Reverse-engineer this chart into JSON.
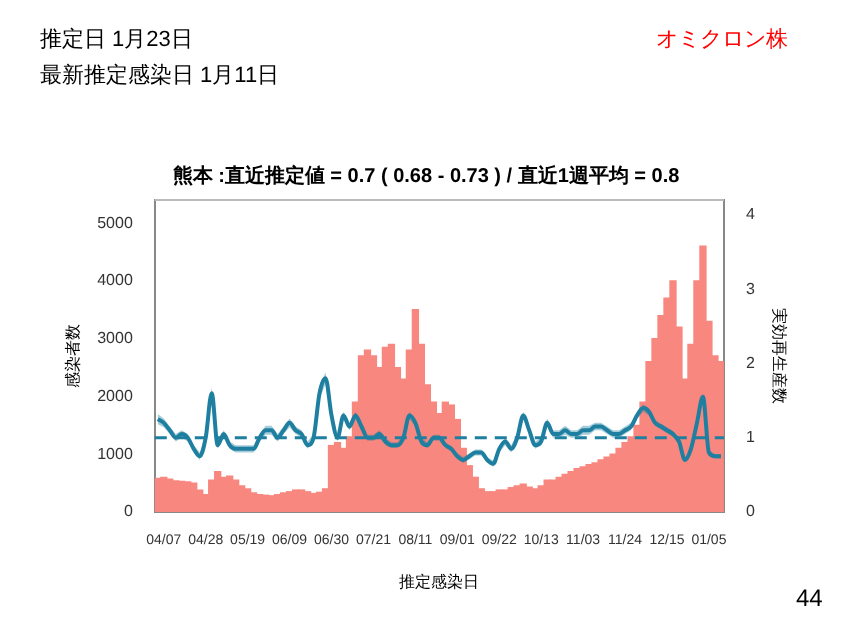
{
  "chart_data": {
    "type": "bar",
    "title": "熊本 :直近推定値 = 0.7 ( 0.68 - 0.73 ) / 直近1週平均 = 0.8",
    "xlabel": "推定感染日",
    "ylabel": "感染者数",
    "y2label": "実効再生産数",
    "annotations": [
      "推定日  1月23日",
      "最新推定感染日  1月11日",
      "オミクロン株",
      "44"
    ],
    "categories": [
      null,
      "04/07",
      null,
      null,
      null,
      null,
      null,
      null,
      "04/28",
      null,
      null,
      null,
      null,
      null,
      null,
      "05/19",
      null,
      null,
      null,
      null,
      null,
      null,
      "06/09",
      null,
      null,
      null,
      null,
      null,
      null,
      "06/30",
      null,
      null,
      null,
      null,
      null,
      null,
      "07/21",
      null,
      null,
      null,
      null,
      null,
      null,
      "08/11",
      null,
      null,
      null,
      null,
      null,
      null,
      "09/01",
      null,
      null,
      null,
      null,
      null,
      null,
      "09/22",
      null,
      null,
      null,
      null,
      null,
      null,
      "10/13",
      null,
      null,
      null,
      null,
      null,
      null,
      "11/03",
      null,
      null,
      null,
      null,
      null,
      null,
      "11/24",
      null,
      null,
      null,
      null,
      null,
      null,
      "12/15",
      null,
      null,
      null,
      null,
      null,
      null,
      "01/05",
      null,
      null
    ],
    "series": [
      {
        "color": "#f8877f",
        "values": [
          580,
          600,
          570,
          540,
          530,
          520,
          500,
          380,
          300,
          550,
          700,
          600,
          620,
          550,
          450,
          400,
          330,
          300,
          290,
          280,
          300,
          330,
          350,
          380,
          380,
          350,
          320,
          340,
          400,
          1150,
          1200,
          1100,
          1300,
          1900,
          2700,
          2800,
          2700,
          2500,
          2850,
          2900,
          2500,
          2300,
          2800,
          3500,
          2900,
          2200,
          1900,
          1700,
          1900,
          1850,
          1600,
          1100,
          800,
          600,
          400,
          350,
          350,
          380,
          380,
          420,
          450,
          480,
          430,
          400,
          450,
          550,
          550,
          600,
          650,
          700,
          750,
          780,
          820,
          850,
          900,
          950,
          1000,
          1100,
          1200,
          1300,
          1500,
          1900,
          2600,
          3000,
          3400,
          3700,
          4000,
          3200,
          2300,
          2900,
          4000,
          4600,
          3300,
          2700,
          2600
        ]
      },
      {
        "type": "line",
        "axis": "y2",
        "color": "#1f7fa0",
        "values": [
          1.25,
          1.2,
          1.1,
          1.0,
          1.05,
          1.0,
          0.85,
          0.75,
          1.0,
          1.6,
          0.9,
          1.05,
          0.9,
          0.85,
          0.85,
          0.85,
          0.85,
          1.0,
          1.1,
          1.1,
          1.0,
          1.1,
          1.2,
          1.1,
          1.05,
          0.9,
          1.0,
          1.6,
          1.8,
          1.3,
          1.0,
          1.3,
          1.15,
          1.3,
          1.15,
          1.0,
          1.0,
          1.05,
          0.95,
          0.9,
          0.9,
          1.0,
          1.3,
          1.2,
          0.95,
          0.9,
          1.0,
          1.0,
          0.9,
          0.85,
          0.75,
          0.7,
          0.75,
          0.8,
          0.8,
          0.7,
          0.65,
          0.85,
          0.95,
          0.85,
          1.0,
          1.3,
          1.1,
          0.9,
          0.95,
          1.2,
          1.05,
          1.05,
          1.1,
          1.05,
          1.05,
          1.1,
          1.1,
          1.15,
          1.15,
          1.1,
          1.05,
          1.05,
          1.1,
          1.15,
          1.3,
          1.4,
          1.35,
          1.2,
          1.15,
          1.1,
          1.05,
          0.95,
          0.7,
          0.85,
          1.2,
          1.55,
          0.8,
          0.75,
          0.75
        ],
        "lower": [
          1.18,
          1.14,
          1.05,
          0.95,
          1.0,
          0.95,
          0.8,
          0.7,
          0.95,
          1.52,
          0.85,
          1.0,
          0.85,
          0.8,
          0.8,
          0.8,
          0.8,
          0.95,
          1.04,
          1.04,
          0.95,
          1.05,
          1.14,
          1.05,
          1.0,
          0.85,
          0.95,
          1.52,
          1.72,
          1.24,
          0.95,
          1.25,
          1.1,
          1.25,
          1.1,
          0.96,
          0.96,
          1.0,
          0.9,
          0.86,
          0.86,
          0.96,
          1.25,
          1.15,
          0.9,
          0.86,
          0.96,
          0.96,
          0.86,
          0.81,
          0.71,
          0.66,
          0.71,
          0.76,
          0.76,
          0.66,
          0.61,
          0.8,
          0.9,
          0.8,
          0.95,
          1.25,
          1.05,
          0.85,
          0.9,
          1.14,
          1.0,
          1.0,
          1.04,
          1.0,
          1.0,
          1.04,
          1.04,
          1.1,
          1.1,
          1.05,
          1.0,
          1.0,
          1.05,
          1.1,
          1.25,
          1.35,
          1.3,
          1.16,
          1.11,
          1.06,
          1.01,
          0.91,
          0.67,
          0.82,
          1.16,
          1.5,
          0.77,
          0.72,
          0.72
        ],
        "upper": [
          1.32,
          1.26,
          1.15,
          1.05,
          1.1,
          1.05,
          0.9,
          0.8,
          1.05,
          1.68,
          0.95,
          1.1,
          0.95,
          0.9,
          0.9,
          0.9,
          0.9,
          1.05,
          1.16,
          1.16,
          1.05,
          1.15,
          1.26,
          1.15,
          1.1,
          0.95,
          1.05,
          1.68,
          1.88,
          1.36,
          1.05,
          1.35,
          1.2,
          1.35,
          1.2,
          1.04,
          1.04,
          1.1,
          1.0,
          0.94,
          0.94,
          1.04,
          1.35,
          1.25,
          1.0,
          0.94,
          1.04,
          1.04,
          0.94,
          0.89,
          0.79,
          0.74,
          0.79,
          0.84,
          0.84,
          0.74,
          0.69,
          0.9,
          1.0,
          0.9,
          1.05,
          1.35,
          1.15,
          0.95,
          1.0,
          1.26,
          1.1,
          1.1,
          1.16,
          1.1,
          1.1,
          1.16,
          1.16,
          1.2,
          1.2,
          1.15,
          1.1,
          1.1,
          1.15,
          1.2,
          1.35,
          1.45,
          1.4,
          1.24,
          1.19,
          1.14,
          1.09,
          0.99,
          0.73,
          0.88,
          1.24,
          1.6,
          0.83,
          0.78,
          0.78
        ]
      }
    ],
    "ylim": [
      0,
      5400
    ],
    "yticks": [
      0,
      1000,
      2000,
      3000,
      4000,
      5000
    ],
    "y2lim": [
      0,
      4.2
    ],
    "y2ticks": [
      0,
      1,
      2,
      3,
      4
    ],
    "ref_lines": [
      {
        "axis": "y2",
        "value": 1,
        "color": "#1f7fa0",
        "line_style": "dashed"
      }
    ],
    "grid": false,
    "legend": false
  }
}
